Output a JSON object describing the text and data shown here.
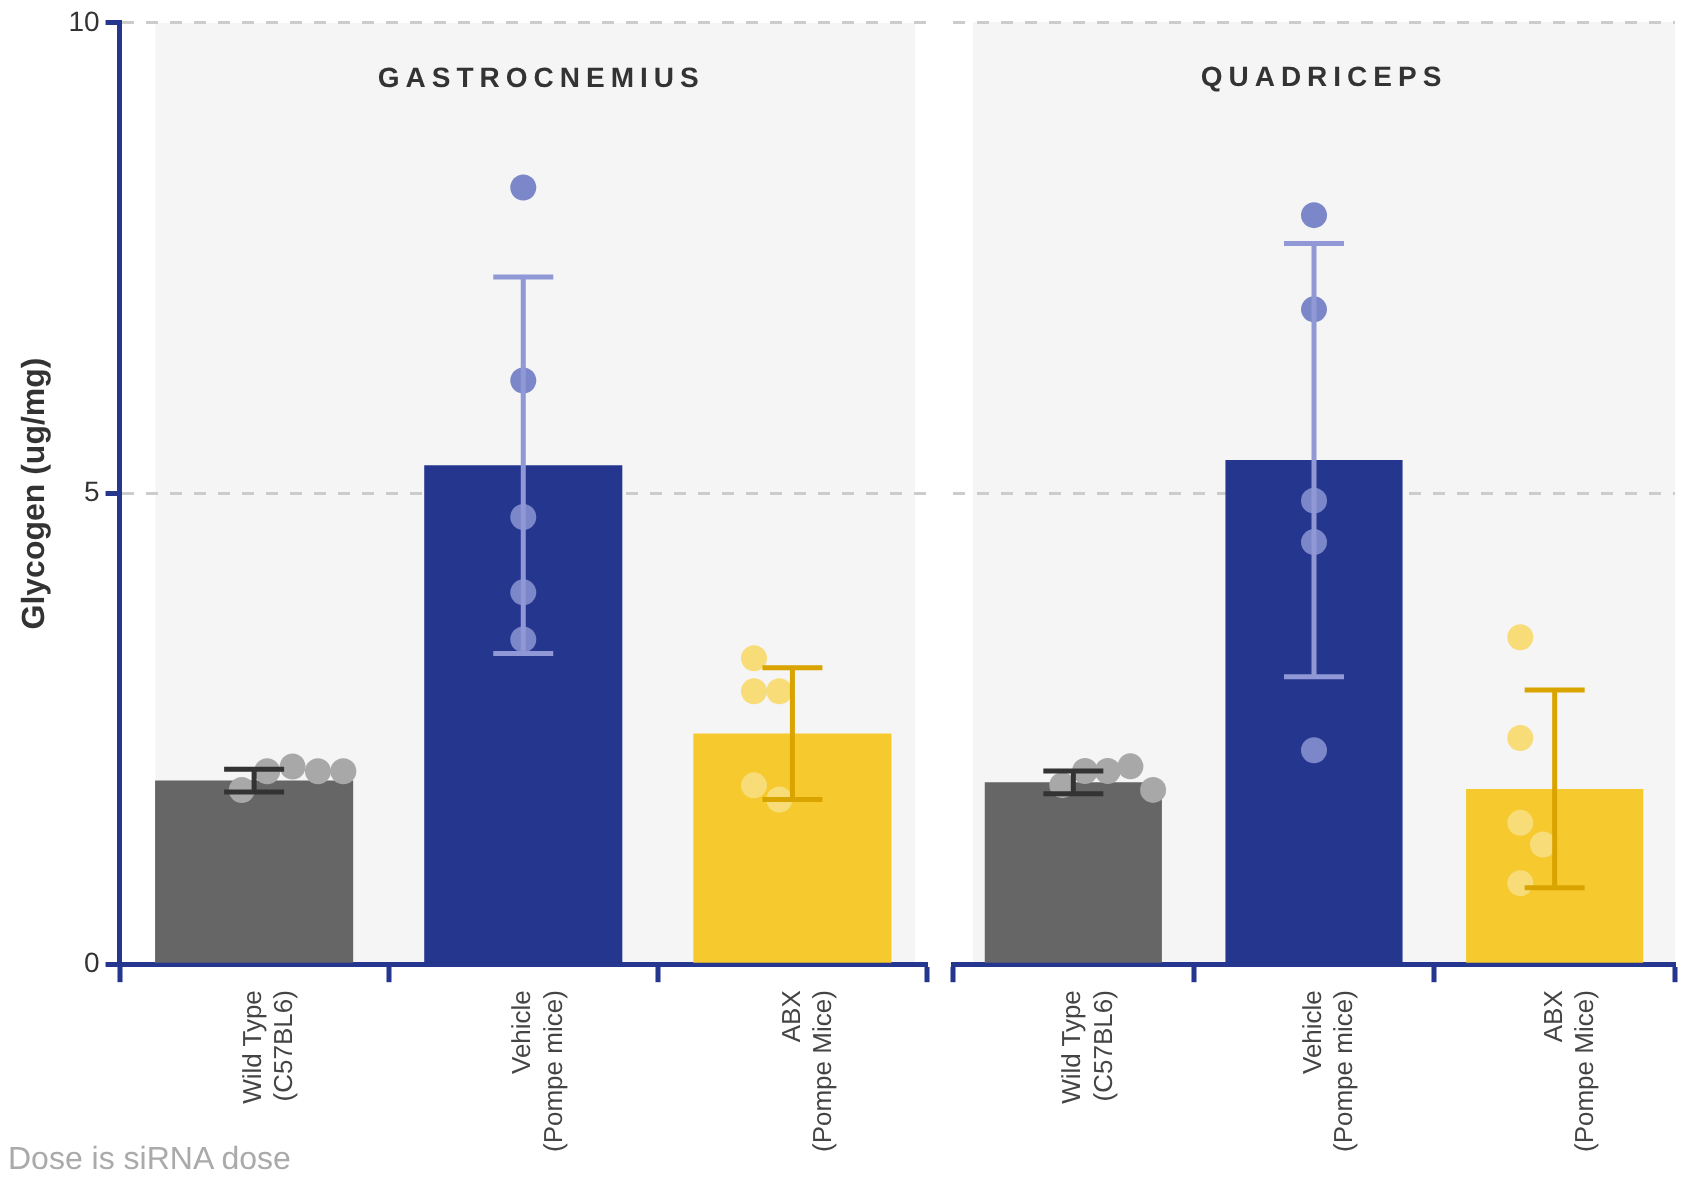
{
  "chart_data": [
    {
      "type": "bar",
      "title": "GASTROCNEMIUS",
      "ylabel": "Glycogen (ug/mg)",
      "categories": [
        "Wild Type\n(C57BL6)",
        "Vehicle\n(Pompe mice)",
        "ABX\n(Pompe Mice)"
      ],
      "ylim": [
        0,
        10
      ],
      "yticks": [
        0,
        5,
        10
      ],
      "grid": "y",
      "annotations": [
        "Dose is siRNA dose"
      ],
      "series": [
        {
          "colors": [
            "#666666",
            "#25368f",
            "#f6c92e"
          ],
          "values": [
            1.95,
            5.3,
            2.45
          ],
          "errors": [
            0.12,
            2.0,
            0.7
          ]
        },
        {
          "type": "scatter",
          "marker": "circle",
          "x": [
            "Wild Type\n(C57BL6)",
            "Wild Type\n(C57BL6)",
            "Wild Type\n(C57BL6)",
            "Wild Type\n(C57BL6)",
            "Wild Type\n(C57BL6)",
            "Vehicle\n(Pompe mice)",
            "Vehicle\n(Pompe mice)",
            "Vehicle\n(Pompe mice)",
            "Vehicle\n(Pompe mice)",
            "Vehicle\n(Pompe mice)",
            "ABX\n(Pompe Mice)",
            "ABX\n(Pompe Mice)",
            "ABX\n(Pompe Mice)",
            "ABX\n(Pompe Mice)",
            "ABX\n(Pompe Mice)"
          ],
          "values": [
            2.1,
            2.05,
            2.05,
            2.05,
            1.85,
            8.25,
            6.2,
            4.75,
            3.95,
            3.45,
            3.25,
            2.9,
            2.9,
            1.9,
            1.75
          ],
          "colors": [
            "#a8a8a8",
            "#a8a8a8",
            "#a8a8a8",
            "#a8a8a8",
            "#a8a8a8",
            "#7c87c9",
            "#7c87c9",
            "#7c87c9",
            "#7c87c9",
            "#7c87c9",
            "#f7dc78",
            "#f7dc78",
            "#f7dc78",
            "#f7dc78",
            "#f7dc78"
          ]
        }
      ]
    },
    {
      "type": "bar",
      "title": "QUADRICEPS",
      "categories": [
        "Wild Type\n(C57BL6)",
        "Vehicle\n(Pompe mice)",
        "ABX\n(Pompe Mice)"
      ],
      "ylim": [
        0,
        10
      ],
      "yticks": [
        0,
        5,
        10
      ],
      "grid": "y",
      "tick_labels": "x",
      "series": [
        {
          "colors": [
            "#666666",
            "#25368f",
            "#f6c92e"
          ],
          "values": [
            1.93,
            5.35,
            1.86
          ],
          "errors": [
            0.12,
            2.3,
            1.05
          ]
        },
        {
          "type": "scatter",
          "marker": "circle",
          "x": [
            "Wild Type\n(C57BL6)",
            "Wild Type\n(C57BL6)",
            "Wild Type\n(C57BL6)",
            "Wild Type\n(C57BL6)",
            "Wild Type\n(C57BL6)",
            "Vehicle\n(Pompe mice)",
            "Vehicle\n(Pompe mice)",
            "Vehicle\n(Pompe mice)",
            "Vehicle\n(Pompe mice)",
            "Vehicle\n(Pompe mice)",
            "ABX\n(Pompe Mice)",
            "ABX\n(Pompe Mice)",
            "ABX\n(Pompe Mice)",
            "ABX\n(Pompe Mice)",
            "ABX\n(Pompe Mice)"
          ],
          "values": [
            2.05,
            2.1,
            2.05,
            1.85,
            1.9,
            7.95,
            6.95,
            4.92,
            4.48,
            2.27,
            3.47,
            2.4,
            1.5,
            1.27,
            0.86
          ],
          "colors": [
            "#a8a8a8",
            "#a8a8a8",
            "#a8a8a8",
            "#a8a8a8",
            "#a8a8a8",
            "#7c87c9",
            "#7c87c9",
            "#7c87c9",
            "#7c87c9",
            "#7c87c9",
            "#f7dc78",
            "#f7dc78",
            "#f7dc78",
            "#f7dc78",
            "#f7dc78"
          ]
        }
      ]
    }
  ]
}
